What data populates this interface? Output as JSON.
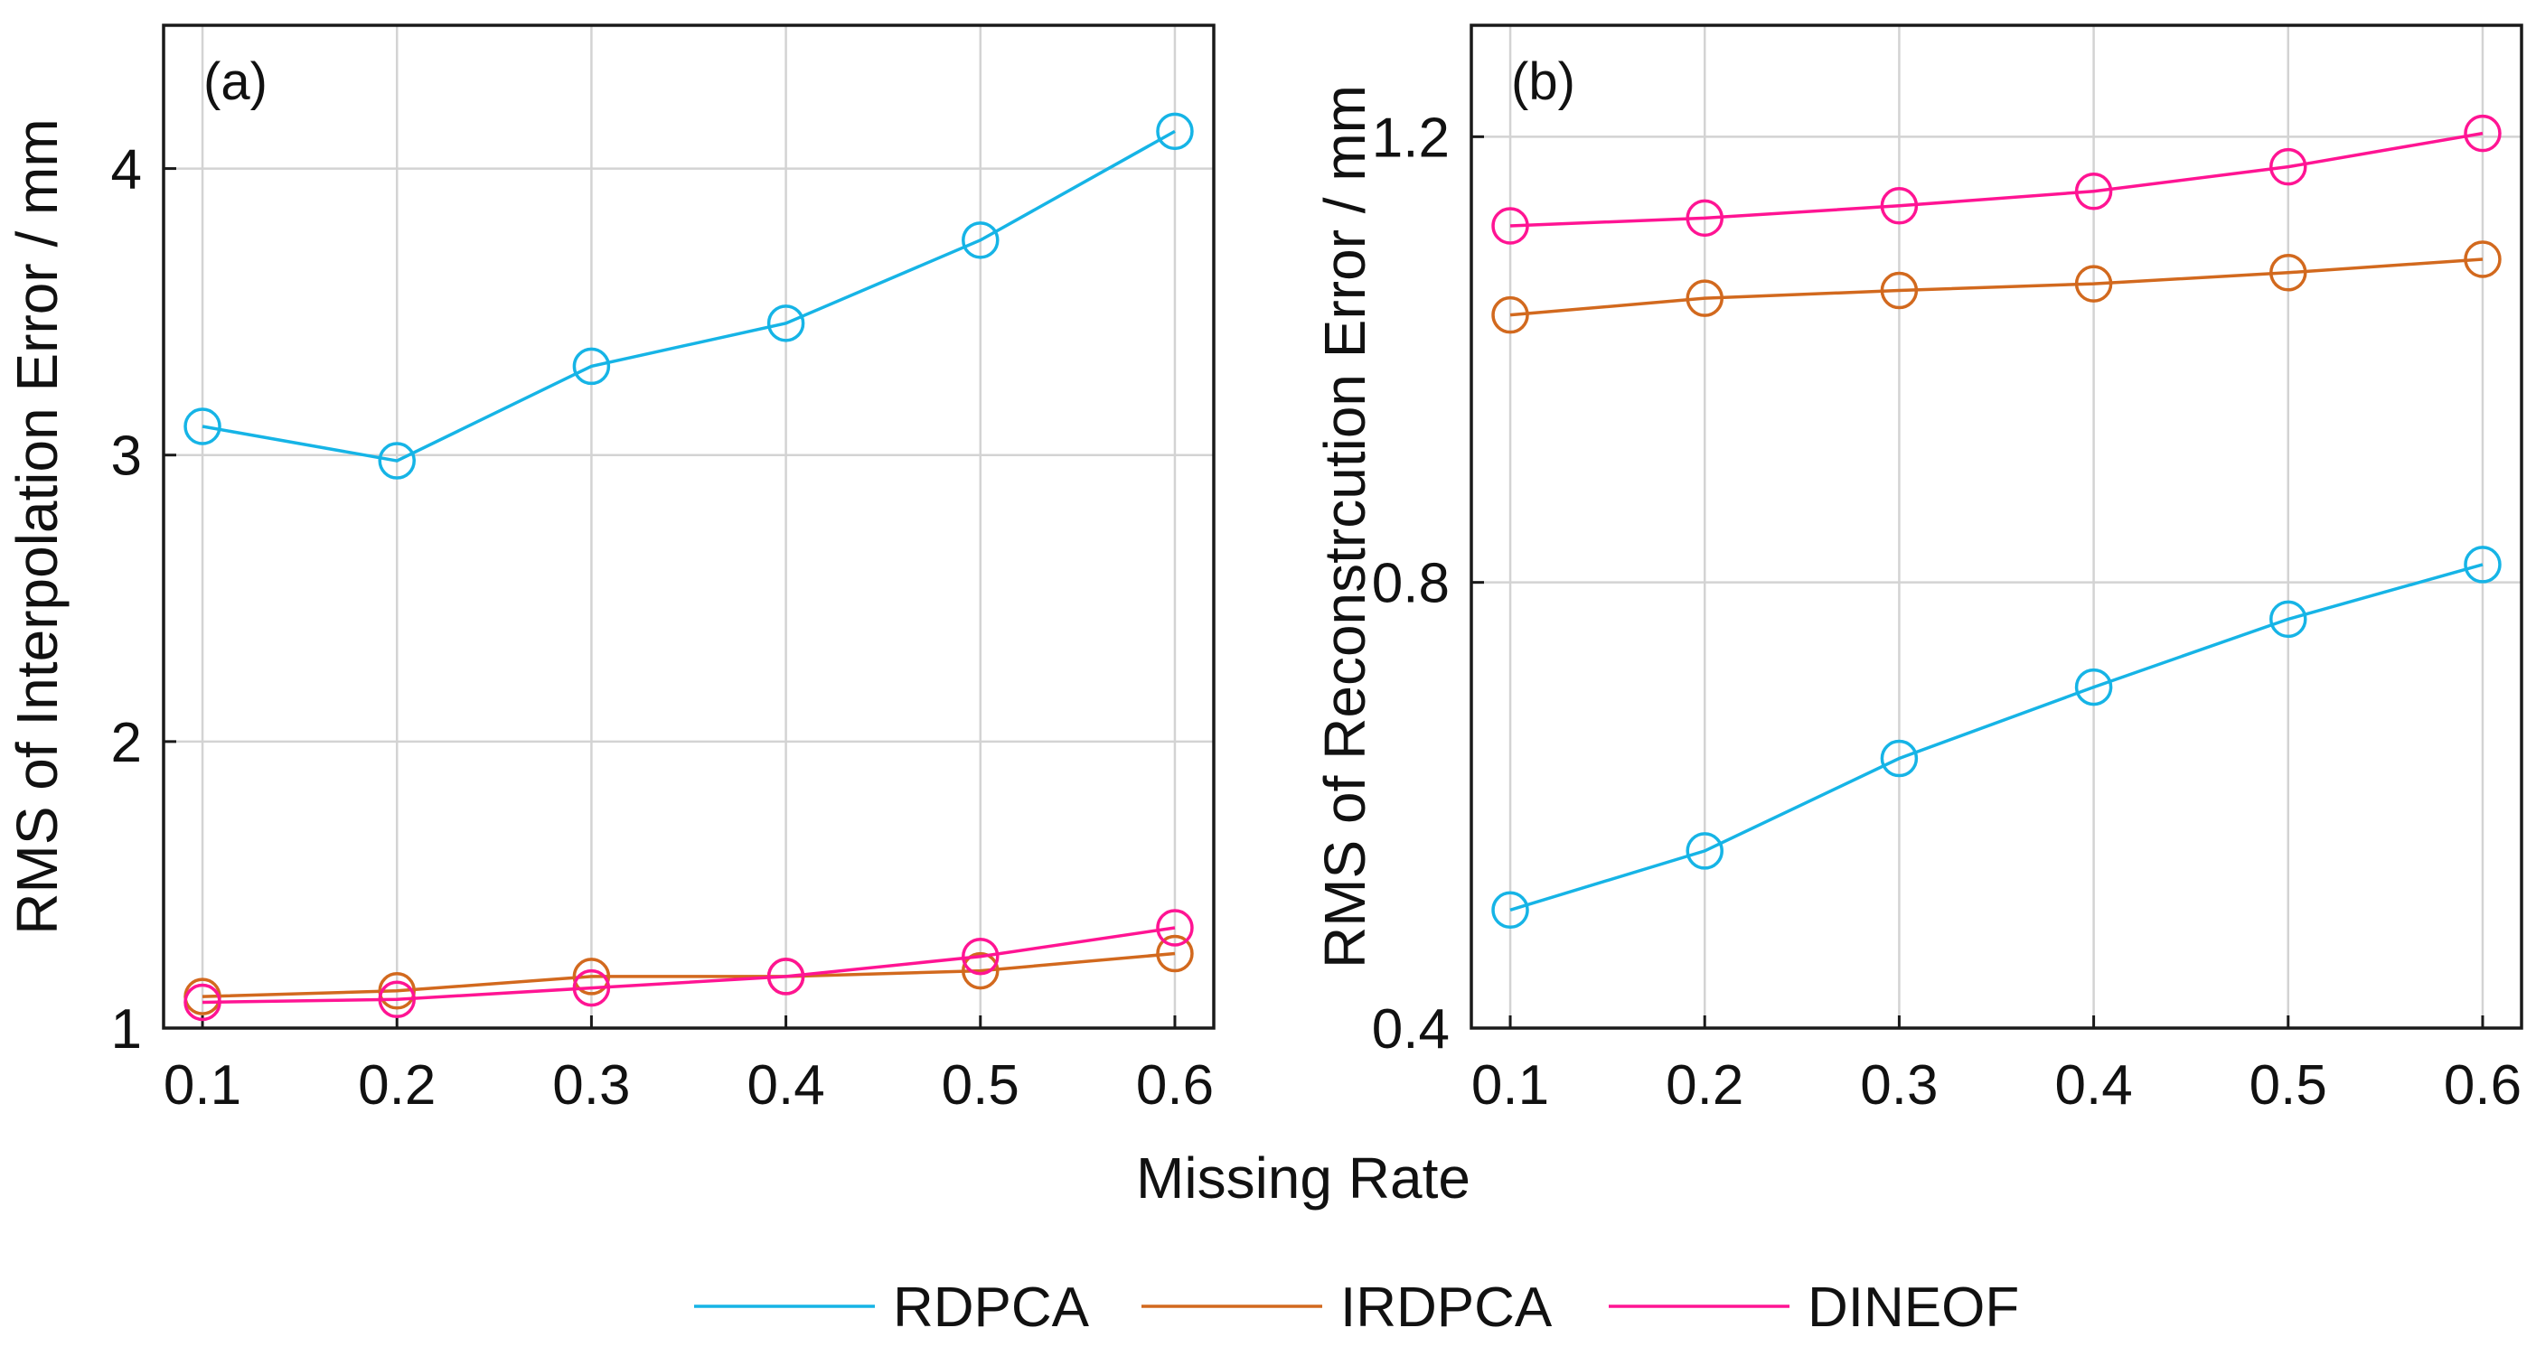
{
  "chart_data": [
    {
      "panel": "(a)",
      "type": "line",
      "ylabel": "RMS of Interpolation Error / mm",
      "xlabel": "",
      "x": [
        0.1,
        0.2,
        0.3,
        0.4,
        0.5,
        0.6
      ],
      "xticks": [
        "0.1",
        "0.2",
        "0.3",
        "0.4",
        "0.5",
        "0.6"
      ],
      "xlim": [
        0.08,
        0.62
      ],
      "ylim": [
        1.0,
        4.5
      ],
      "yticks": [
        1,
        2,
        3,
        4
      ],
      "ytick_labels": [
        "1",
        "2",
        "3",
        "4"
      ],
      "grid": true,
      "series": [
        {
          "name": "RDPCA",
          "values": [
            3.1,
            2.98,
            3.31,
            3.46,
            3.75,
            4.13
          ]
        },
        {
          "name": "IRDPCA",
          "values": [
            1.11,
            1.13,
            1.18,
            1.18,
            1.2,
            1.26
          ]
        },
        {
          "name": "DINEOF",
          "values": [
            1.09,
            1.1,
            1.14,
            1.18,
            1.25,
            1.35
          ]
        }
      ]
    },
    {
      "panel": "(b)",
      "type": "line",
      "ylabel": "RMS of Reconstrcution Error / mm",
      "xlabel": "",
      "x": [
        0.1,
        0.2,
        0.3,
        0.4,
        0.5,
        0.6
      ],
      "xticks": [
        "0.1",
        "0.2",
        "0.3",
        "0.4",
        "0.5",
        "0.6"
      ],
      "xlim": [
        0.08,
        0.62
      ],
      "ylim": [
        0.4,
        1.3
      ],
      "yticks": [
        0.4,
        0.8,
        1.2
      ],
      "ytick_labels": [
        "0.4",
        "0.8",
        "1.2"
      ],
      "grid": true,
      "series": [
        {
          "name": "RDPCA",
          "values": [
            0.506,
            0.559,
            0.642,
            0.706,
            0.767,
            0.816
          ]
        },
        {
          "name": "IRDPCA",
          "values": [
            1.04,
            1.055,
            1.062,
            1.068,
            1.078,
            1.09
          ]
        },
        {
          "name": "DINEOF",
          "values": [
            1.12,
            1.127,
            1.138,
            1.151,
            1.173,
            1.203
          ]
        }
      ]
    }
  ],
  "shared_xlabel": "Missing Rate",
  "legend": {
    "placement": "bottom-center",
    "entries": [
      {
        "name": "RDPCA",
        "color": "#16b4e6"
      },
      {
        "name": "IRDPCA",
        "color": "#d2691e"
      },
      {
        "name": "DINEOF",
        "color": "#ff1493"
      }
    ]
  },
  "colors": {
    "RDPCA": "#16b4e6",
    "IRDPCA": "#d2691e",
    "DINEOF": "#ff1493"
  }
}
